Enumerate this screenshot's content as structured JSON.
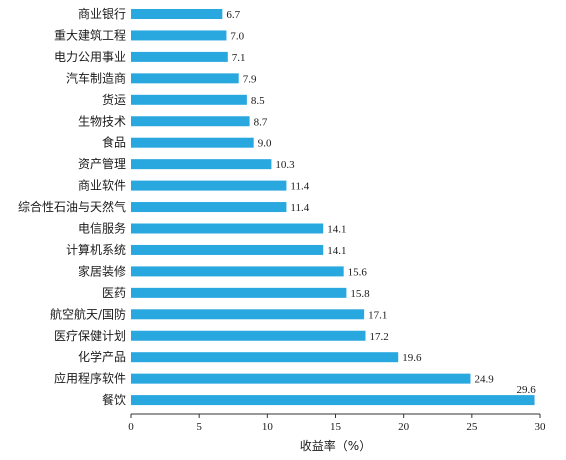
{
  "chart_data": {
    "type": "bar",
    "orientation": "horizontal",
    "categories": [
      "商业银行",
      "重大建筑工程",
      "电力公用事业",
      "汽车制造商",
      "货运",
      "生物技术",
      "食品",
      "资产管理",
      "商业软件",
      "综合性石油与天然气",
      "电信服务",
      "计算机系统",
      "家居装修",
      "医药",
      "航空航天/国防",
      "医疗保健计划",
      "化学产品",
      "应用程序软件",
      "餐饮"
    ],
    "values": [
      6.7,
      7.0,
      7.1,
      7.9,
      8.5,
      8.7,
      9.0,
      10.3,
      11.4,
      11.4,
      14.1,
      14.1,
      15.6,
      15.8,
      17.1,
      17.2,
      19.6,
      24.9,
      29.6
    ],
    "value_labels": [
      "6.7",
      "7.0",
      "7.1",
      "7.9",
      "8.5",
      "8.7",
      "9.0",
      "10.3",
      "11.4",
      "11.4",
      "14.1",
      "14.1",
      "15.6",
      "15.8",
      "17.1",
      "17.2",
      "19.6",
      "24.9",
      "29.6"
    ],
    "xlabel": "收益率（%）",
    "xlim": [
      0,
      30
    ],
    "xticks": [
      "0",
      "5",
      "10",
      "15",
      "20",
      "25",
      "30"
    ],
    "grid": false,
    "bar_color": "#29a8e0"
  }
}
